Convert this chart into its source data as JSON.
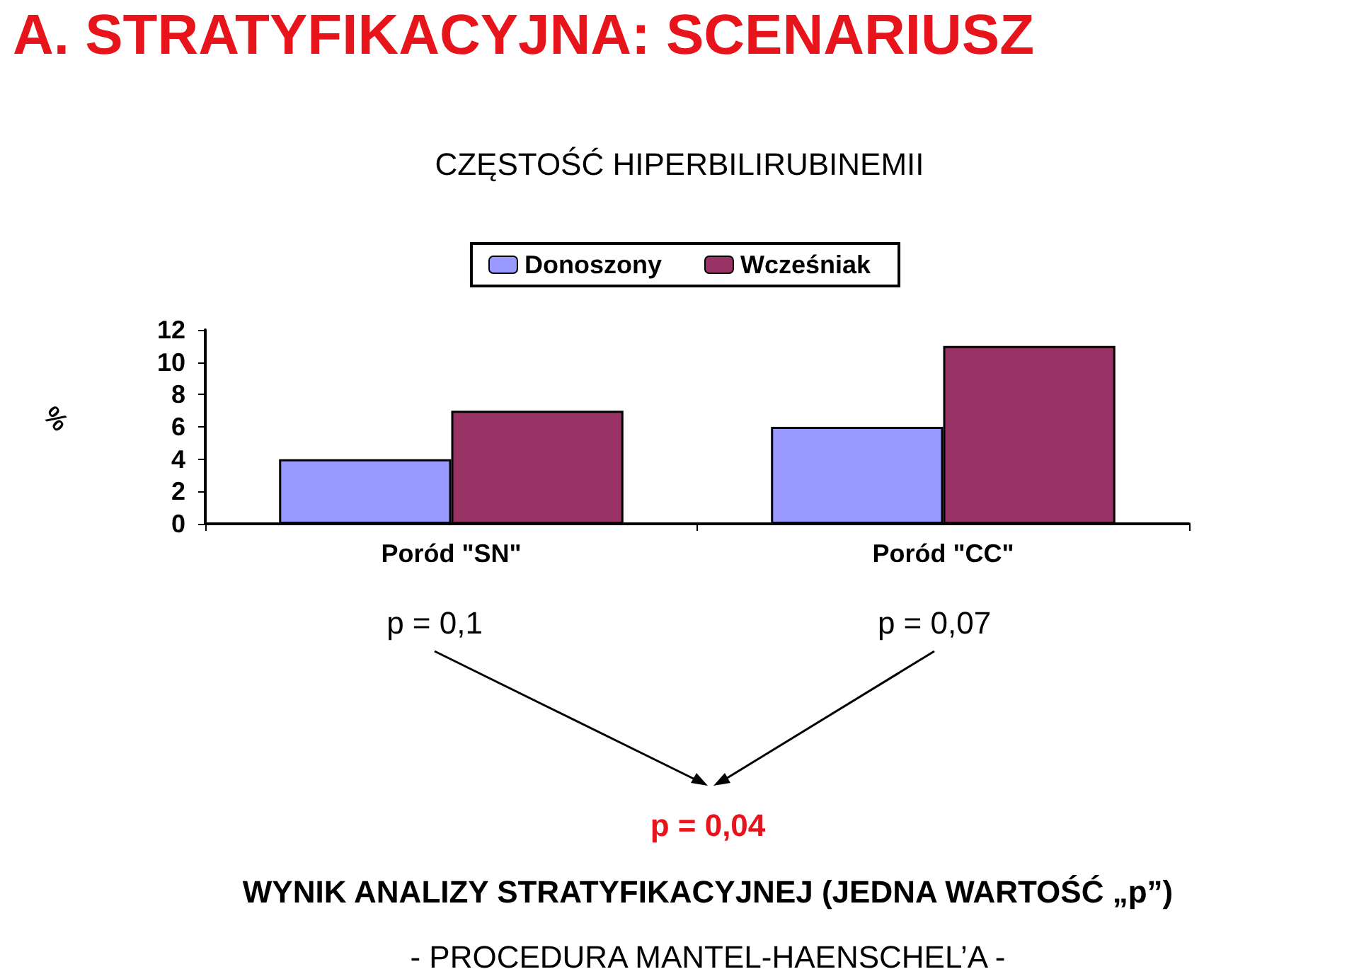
{
  "chart_data": {
    "type": "bar",
    "title": "A. STRATYFIKACYJNA: SCENARIUSZ",
    "subtitle": "CZĘSTOŚĆ HIPERBILIRUBINEMII",
    "ylabel": "%",
    "categories": [
      "Poród \"SN\"",
      "Poród \"CC\""
    ],
    "series": [
      {
        "name": "Donoszony",
        "color": "#9999ff",
        "values": [
          4,
          6
        ]
      },
      {
        "name": "Wcześniak",
        "color": "#993366",
        "values": [
          7,
          11
        ]
      }
    ],
    "ylim": [
      0,
      12
    ],
    "yticks": [
      0,
      2,
      4,
      6,
      8,
      10,
      12
    ],
    "grid": false,
    "legend": "top",
    "annotations": [
      "p = 0,1",
      "p = 0,07",
      "p = 0,04",
      "WYNIK ANALIZY STRATYFIKACYJNEJ (JEDNA WARTOŚĆ „p”)",
      "- PROCEDURA MANTEL-HAENSCHEL’A -"
    ]
  }
}
